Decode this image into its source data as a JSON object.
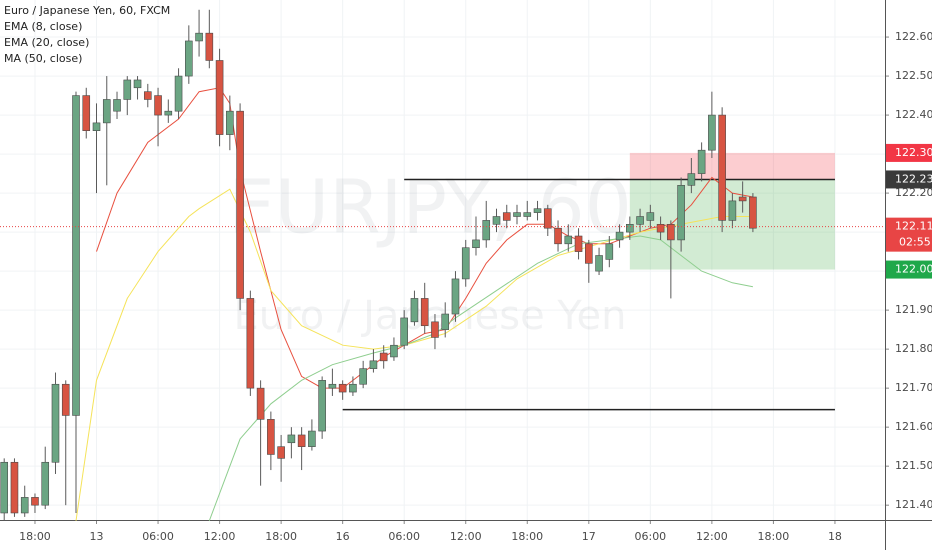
{
  "chart_data": {
    "type": "candlestick",
    "title": "Euro / Japanese Yen, 60, FXCM",
    "watermark": "EURJPY, 60",
    "watermark_subtitle": "Euro / Japanese Yen",
    "up_color": "#6ba583",
    "down_color": "#d75442",
    "xlim": [
      -3.41,
      82.88
    ],
    "ylim": [
      121.362,
      122.695
    ],
    "grid": true,
    "xticks": [
      {
        "value": 0,
        "label": "18:00"
      },
      {
        "value": 6,
        "label": "13"
      },
      {
        "value": 12,
        "label": "06:00"
      },
      {
        "value": 18,
        "label": "12:00"
      },
      {
        "value": 24,
        "label": "18:00"
      },
      {
        "value": 30,
        "label": "16"
      },
      {
        "value": 36,
        "label": "06:00"
      },
      {
        "value": 42,
        "label": "12:00"
      },
      {
        "value": 48,
        "label": "18:00"
      },
      {
        "value": 54,
        "label": "17"
      },
      {
        "value": 60,
        "label": "06:00"
      },
      {
        "value": 66,
        "label": "12:00"
      },
      {
        "value": 72,
        "label": "18:00"
      },
      {
        "value": 78,
        "label": "18"
      }
    ],
    "yticks": [
      {
        "value": 121.4,
        "label": "121.400"
      },
      {
        "value": 121.5,
        "label": "121.500"
      },
      {
        "value": 121.6,
        "label": "121.600"
      },
      {
        "value": 121.7,
        "label": "121.700"
      },
      {
        "value": 121.8,
        "label": "121.800"
      },
      {
        "value": 121.9,
        "label": "121.900"
      },
      {
        "value": 122.0,
        "label": "122.000"
      },
      {
        "value": 122.1,
        "label": "122.100"
      },
      {
        "value": 122.2,
        "label": "122.200"
      },
      {
        "value": 122.3,
        "label": "122.300"
      },
      {
        "value": 122.4,
        "label": "122.400"
      },
      {
        "value": 122.5,
        "label": "122.500"
      },
      {
        "value": 122.6,
        "label": "122.600"
      }
    ],
    "x": [
      -3,
      -2,
      -1,
      0,
      1,
      2,
      3,
      4,
      5,
      6,
      7,
      8,
      9,
      10,
      11,
      12,
      13,
      14,
      15,
      16,
      17,
      18,
      19,
      20,
      21,
      22,
      23,
      24,
      25,
      26,
      27,
      28,
      29,
      30,
      31,
      32,
      33,
      34,
      35,
      36,
      37,
      38,
      39,
      40,
      41,
      42,
      43,
      44,
      45,
      46,
      47,
      48,
      49,
      50,
      51,
      52,
      53,
      54,
      55,
      56,
      57,
      58,
      59,
      60,
      61,
      62,
      63,
      64,
      65,
      66,
      67,
      68,
      69,
      70
    ],
    "open": [
      121.38,
      121.51,
      121.38,
      121.42,
      121.4,
      121.51,
      121.71,
      121.63,
      122.45,
      122.36,
      122.38,
      122.41,
      122.44,
      122.47,
      122.46,
      122.45,
      122.4,
      122.41,
      122.5,
      122.59,
      122.61,
      122.54,
      122.35,
      122.41,
      121.93,
      121.7,
      121.62,
      121.55,
      121.56,
      121.58,
      121.55,
      121.59,
      121.7,
      121.71,
      121.69,
      121.71,
      121.75,
      121.79,
      121.78,
      121.81,
      121.87,
      121.93,
      121.87,
      121.85,
      121.89,
      121.98,
      122.06,
      122.08,
      122.12,
      122.15,
      122.14,
      122.14,
      122.15,
      122.16,
      122.11,
      122.07,
      122.09,
      122.07,
      122.0,
      122.03,
      122.08,
      122.1,
      122.12,
      122.13,
      122.12,
      122.12,
      122.08,
      122.22,
      122.25,
      122.31,
      122.4,
      122.13,
      122.19,
      122.19
    ],
    "high": [
      121.52,
      121.52,
      121.45,
      121.43,
      121.55,
      121.74,
      121.72,
      122.46,
      122.47,
      122.43,
      122.5,
      122.46,
      122.5,
      122.5,
      122.48,
      122.47,
      122.44,
      122.52,
      122.63,
      122.67,
      122.67,
      122.57,
      122.45,
      122.43,
      121.95,
      121.72,
      121.64,
      121.58,
      121.6,
      121.6,
      121.62,
      121.73,
      121.75,
      121.72,
      121.73,
      121.77,
      121.8,
      121.81,
      121.83,
      121.9,
      121.95,
      121.97,
      121.89,
      121.92,
      122.0,
      122.08,
      122.14,
      122.18,
      122.16,
      122.17,
      122.17,
      122.18,
      122.18,
      122.17,
      122.13,
      122.12,
      122.11,
      122.08,
      122.06,
      122.09,
      122.12,
      122.14,
      122.16,
      122.17,
      122.14,
      122.13,
      122.24,
      122.29,
      122.33,
      122.46,
      122.42,
      122.2,
      122.23,
      122.2
    ],
    "low": [
      121.36,
      121.37,
      121.37,
      121.38,
      121.39,
      121.48,
      121.4,
      121.38,
      122.34,
      122.2,
      122.22,
      122.39,
      122.4,
      122.44,
      122.42,
      122.32,
      122.38,
      122.39,
      122.48,
      122.55,
      122.52,
      122.32,
      122.31,
      121.9,
      121.68,
      121.45,
      121.49,
      121.46,
      121.52,
      121.49,
      121.54,
      121.57,
      121.68,
      121.67,
      121.68,
      121.7,
      121.74,
      121.75,
      121.77,
      121.8,
      121.86,
      121.84,
      121.8,
      121.83,
      121.87,
      121.96,
      122.04,
      122.06,
      122.1,
      122.11,
      122.12,
      122.13,
      122.13,
      122.09,
      122.05,
      122.05,
      122.03,
      121.97,
      121.99,
      122.01,
      122.06,
      122.08,
      122.1,
      122.11,
      122.08,
      121.93,
      122.05,
      122.2,
      122.23,
      122.29,
      122.1,
      122.11,
      122.15,
      122.1
    ],
    "close": [
      121.51,
      121.38,
      121.42,
      121.4,
      121.51,
      121.71,
      121.63,
      122.45,
      122.36,
      122.38,
      122.44,
      122.44,
      122.49,
      122.49,
      122.44,
      122.4,
      122.41,
      122.5,
      122.59,
      122.61,
      122.54,
      122.35,
      122.41,
      121.93,
      121.7,
      121.62,
      121.53,
      121.52,
      121.58,
      121.55,
      121.59,
      121.72,
      121.71,
      121.69,
      121.71,
      121.75,
      121.77,
      121.77,
      121.81,
      121.88,
      121.93,
      121.86,
      121.83,
      121.89,
      121.98,
      122.06,
      122.08,
      122.13,
      122.14,
      122.13,
      122.15,
      122.15,
      122.16,
      122.11,
      122.07,
      122.09,
      122.05,
      122.02,
      122.04,
      122.07,
      122.1,
      122.12,
      122.14,
      122.15,
      122.1,
      122.08,
      122.22,
      122.25,
      122.31,
      122.4,
      122.13,
      122.18,
      122.18,
      122.11
    ],
    "lines": [
      {
        "name": "EMA (8, close)",
        "color": "#e8503f",
        "x": [
          6,
          8,
          11,
          14,
          16,
          18,
          19,
          20,
          22,
          24,
          26,
          28,
          30,
          32,
          34,
          36,
          38,
          40,
          42,
          44,
          46,
          48,
          50,
          52,
          54,
          56,
          58,
          60,
          62,
          64,
          66,
          68,
          70
        ],
        "values": [
          122.05,
          122.2,
          122.33,
          122.39,
          122.46,
          122.47,
          122.43,
          122.26,
          122.05,
          121.85,
          121.73,
          121.7,
          121.7,
          121.74,
          121.78,
          121.81,
          121.84,
          121.85,
          121.93,
          122.02,
          122.08,
          122.12,
          122.12,
          122.09,
          122.07,
          122.07,
          122.09,
          122.11,
          122.12,
          122.17,
          122.24,
          122.2,
          122.19
        ]
      },
      {
        "name": "EMA (20, close)",
        "color": "#f5e35a",
        "x": [
          4,
          6,
          9,
          12,
          15,
          16,
          19,
          21,
          23,
          26,
          30,
          33,
          36,
          40,
          44,
          47,
          51,
          55,
          59,
          63,
          67,
          70
        ],
        "values": [
          121.36,
          121.72,
          121.93,
          122.05,
          122.14,
          122.16,
          122.21,
          122.1,
          121.95,
          121.86,
          121.81,
          121.8,
          121.81,
          121.84,
          121.91,
          121.98,
          122.04,
          122.07,
          122.1,
          122.12,
          122.14,
          122.14
        ]
      },
      {
        "name": "MA (50, close)",
        "color": "#8fce8f",
        "x": [
          17,
          20,
          23,
          26,
          29,
          33,
          36,
          39,
          41,
          45,
          49,
          53,
          56,
          59,
          61,
          65,
          68,
          70
        ],
        "values": [
          121.36,
          121.57,
          121.66,
          121.72,
          121.76,
          121.79,
          121.81,
          121.84,
          121.88,
          121.95,
          122.02,
          122.07,
          122.08,
          122.09,
          122.08,
          122.0,
          121.97,
          121.96
        ]
      }
    ],
    "hlines": [
      {
        "value": 122.235,
        "x": [
          36,
          78
        ]
      },
      {
        "value": 121.645,
        "x": [
          30,
          78
        ]
      }
    ],
    "position": {
      "stop": 122.303,
      "entry": 122.235,
      "target": 122.004,
      "x": [
        58,
        78
      ]
    },
    "last_price": 122.114,
    "price_labels": [
      {
        "value": 122.303,
        "color": "#f23645"
      },
      {
        "value": 122.235,
        "color": "#3a3a3a"
      },
      {
        "value": 122.114,
        "color": "#e84545"
      },
      {
        "value": 122.004,
        "color": "#1fa84a"
      }
    ],
    "countdown": "02:55"
  }
}
